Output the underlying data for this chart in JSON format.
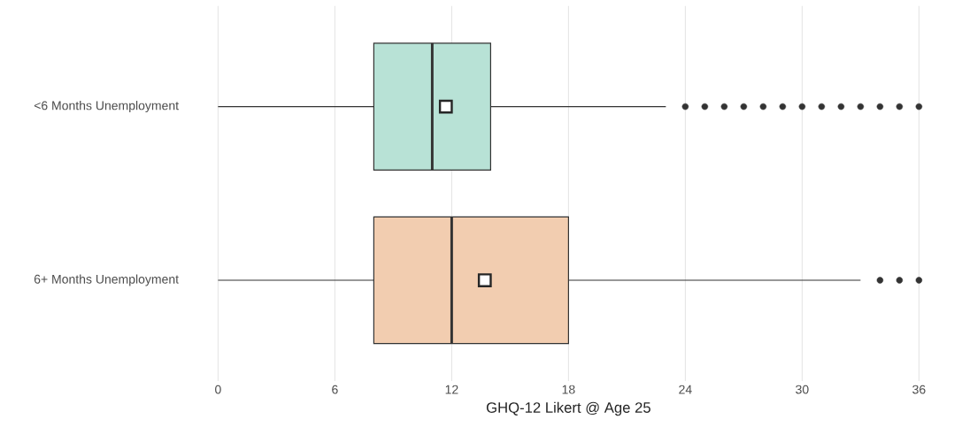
{
  "chart_data": {
    "type": "box",
    "orientation": "horizontal",
    "xlabel": "GHQ-12 Likert @ Age 25",
    "categories": [
      "<6 Months Unemployment",
      "6+ Months Unemployment"
    ],
    "colors": [
      "#b8e2d6",
      "#f2cdb0"
    ],
    "boxes": [
      {
        "low": 0,
        "q1": 8,
        "median": 11,
        "q3": 14,
        "high": 23,
        "mean": 11.7,
        "outliers": [
          24,
          25,
          26,
          27,
          28,
          29,
          30,
          31,
          32,
          33,
          34,
          35,
          36
        ]
      },
      {
        "low": 0,
        "q1": 8,
        "median": 12,
        "q3": 18,
        "high": 33,
        "mean": 13.7,
        "outliers": [
          34,
          35,
          36
        ]
      }
    ],
    "xlim": [
      0,
      36
    ],
    "xticks": [
      0,
      6,
      12,
      18,
      24,
      30,
      36
    ],
    "grid": "x"
  }
}
